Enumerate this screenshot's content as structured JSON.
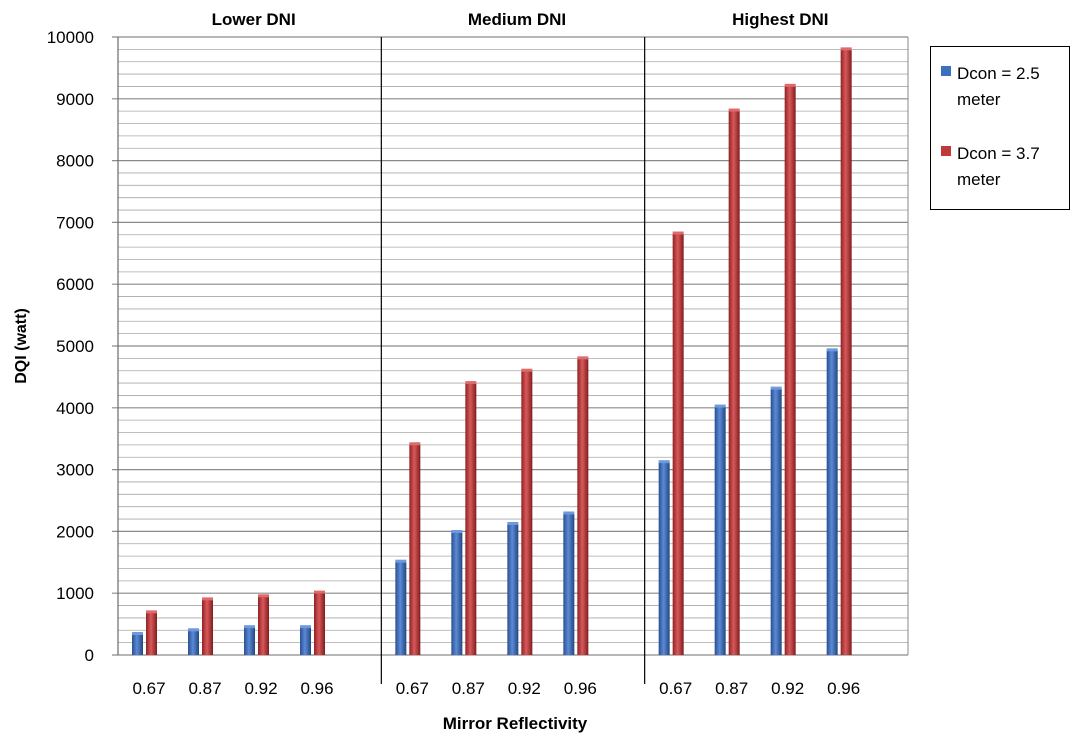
{
  "chart_data": {
    "type": "bar",
    "ylabel": "DQI (watt)",
    "xlabel": "Mirror Reflectivity",
    "ylim": [
      0,
      10000
    ],
    "yticks": [
      "0",
      "1000",
      "2000",
      "3000",
      "4000",
      "5000",
      "6000",
      "7000",
      "8000",
      "9000",
      "10000"
    ],
    "grid": true,
    "legend_position": "right",
    "categories": [
      "0.67",
      "0.87",
      "0.92",
      "0.96"
    ],
    "groups": [
      {
        "title": "Lower DNI",
        "series": [
          {
            "name": "Dcon = 2.5 meter",
            "values": [
              340,
              400,
              450,
              450
            ]
          },
          {
            "name": "Dcon = 3.7 meter",
            "values": [
              690,
              900,
              950,
              1010
            ]
          }
        ]
      },
      {
        "title": "Medium  DNI",
        "series": [
          {
            "name": "Dcon = 2.5 meter",
            "values": [
              1510,
              1990,
              2120,
              2290
            ]
          },
          {
            "name": "Dcon = 3.7 meter",
            "values": [
              3410,
              4400,
              4600,
              4800
            ]
          }
        ]
      },
      {
        "title": "Highest  DNI",
        "series": [
          {
            "name": "Dcon = 2.5 meter",
            "values": [
              3120,
              4020,
              4310,
              4930
            ]
          },
          {
            "name": "Dcon = 3.7 meter",
            "values": [
              6820,
              8810,
              9210,
              9800
            ]
          }
        ]
      }
    ],
    "legend": [
      {
        "label": "Dcon = 2.5 meter",
        "color": "#3d6fc0"
      },
      {
        "label": "Dcon = 3.7 meter",
        "color": "#c0393b"
      }
    ]
  }
}
